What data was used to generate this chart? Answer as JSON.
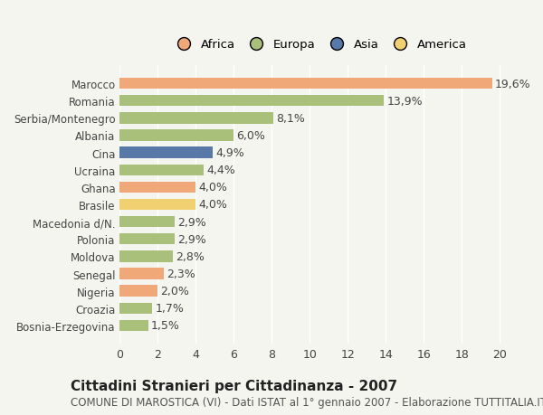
{
  "countries": [
    "Marocco",
    "Romania",
    "Serbia/Montenegro",
    "Albania",
    "Cina",
    "Ucraina",
    "Ghana",
    "Brasile",
    "Macedonia d/N.",
    "Polonia",
    "Moldova",
    "Senegal",
    "Nigeria",
    "Croazia",
    "Bosnia-Erzegovina"
  ],
  "values": [
    19.6,
    13.9,
    8.1,
    6.0,
    4.9,
    4.4,
    4.0,
    4.0,
    2.9,
    2.9,
    2.8,
    2.3,
    2.0,
    1.7,
    1.5
  ],
  "labels": [
    "19,6%",
    "13,9%",
    "8,1%",
    "6,0%",
    "4,9%",
    "4,4%",
    "4,0%",
    "4,0%",
    "2,9%",
    "2,9%",
    "2,8%",
    "2,3%",
    "2,0%",
    "1,7%",
    "1,5%"
  ],
  "continents": [
    "Africa",
    "Europa",
    "Europa",
    "Europa",
    "Asia",
    "Europa",
    "Africa",
    "America",
    "Europa",
    "Europa",
    "Europa",
    "Africa",
    "Africa",
    "Europa",
    "Europa"
  ],
  "colors": {
    "Africa": "#F0A878",
    "Europa": "#A8C07A",
    "Asia": "#5878A8",
    "America": "#F0D070"
  },
  "legend_order": [
    "Africa",
    "Europa",
    "Asia",
    "America"
  ],
  "legend_colors": [
    "#F0A878",
    "#A8C07A",
    "#5878A8",
    "#F0D070"
  ],
  "xlim": [
    0,
    21
  ],
  "xticks": [
    0,
    2,
    4,
    6,
    8,
    10,
    12,
    14,
    16,
    18,
    20
  ],
  "title": "Cittadini Stranieri per Cittadinanza - 2007",
  "subtitle": "COMUNE DI MAROSTICA (VI) - Dati ISTAT al 1° gennaio 2007 - Elaborazione TUTTITALIA.IT",
  "bg_color": "#F5F5F0",
  "bar_height": 0.65,
  "label_fontsize": 9,
  "title_fontsize": 11,
  "subtitle_fontsize": 8.5,
  "ytick_fontsize": 8.5,
  "xtick_fontsize": 9
}
